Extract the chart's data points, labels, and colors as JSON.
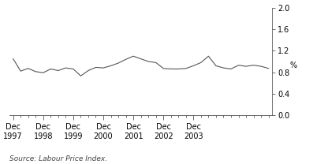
{
  "source_text": "Source: Labour Price Index.",
  "ylabel": "%",
  "y_values": [
    1.05,
    0.82,
    0.87,
    0.81,
    0.79,
    0.86,
    0.83,
    0.88,
    0.86,
    0.73,
    0.83,
    0.89,
    0.88,
    0.92,
    0.97,
    1.04,
    1.1,
    1.05,
    1.0,
    0.98,
    0.87,
    0.86,
    0.86,
    0.87,
    0.92,
    0.98,
    1.1,
    0.92,
    0.88,
    0.86,
    0.93,
    0.91,
    0.93,
    0.91,
    0.87
  ],
  "ylim": [
    0.0,
    2.0
  ],
  "yticks": [
    0.0,
    0.4,
    0.8,
    1.2,
    1.6,
    2.0
  ],
  "x_tick_major_positions": [
    0,
    4,
    8,
    12,
    16,
    20,
    24
  ],
  "x_tick_labels": [
    "Dec\n1997",
    "Dec\n1998",
    "Dec\n1999",
    "Dec\n2000",
    "Dec\n2001",
    "Dec\n2002",
    "Dec\n2003"
  ],
  "line_color": "#555555",
  "background_color": "#ffffff",
  "line_width": 0.8,
  "tick_color": "#555555",
  "spine_color": "#555555",
  "label_fontsize": 7,
  "source_fontsize": 6.5
}
